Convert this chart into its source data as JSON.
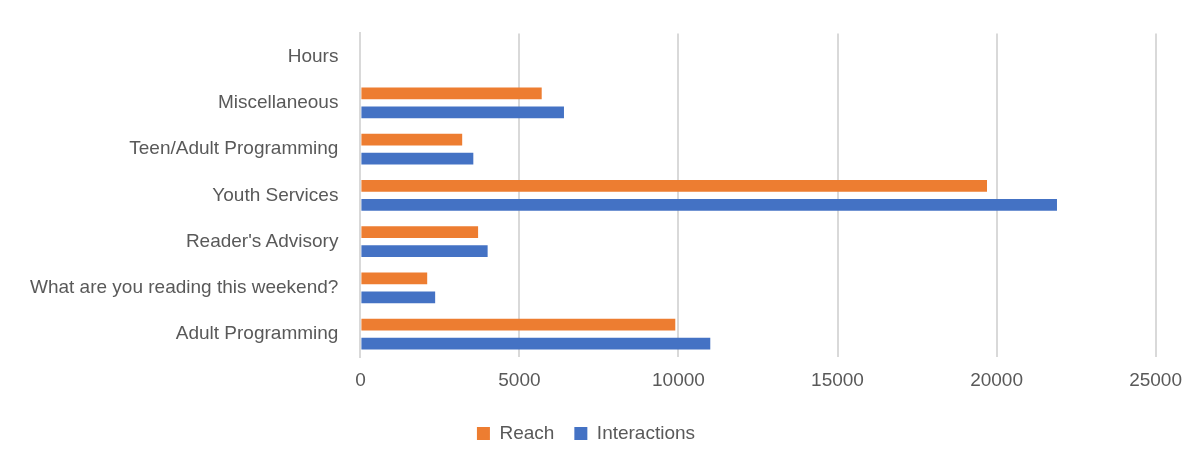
{
  "chart_data": {
    "type": "bar",
    "orientation": "horizontal",
    "categories": [
      "Hours",
      "Miscellaneous",
      "Teen/Adult Programming",
      "Youth Services",
      "Reader's Advisory",
      "What are you reading this weekend?",
      "Adult Programming"
    ],
    "series": [
      {
        "name": "Reach",
        "color": "#ed7d31",
        "values": [
          0,
          5700,
          3200,
          19700,
          3700,
          2100,
          9900
        ]
      },
      {
        "name": "Interactions",
        "color": "#4472c4",
        "values": [
          0,
          6400,
          3550,
          21900,
          4000,
          2350,
          11000
        ]
      }
    ],
    "xlim": [
      0,
      25000
    ],
    "xticks": [
      0,
      5000,
      10000,
      15000,
      20000,
      25000
    ],
    "grid": "x",
    "legend": "bottom"
  }
}
